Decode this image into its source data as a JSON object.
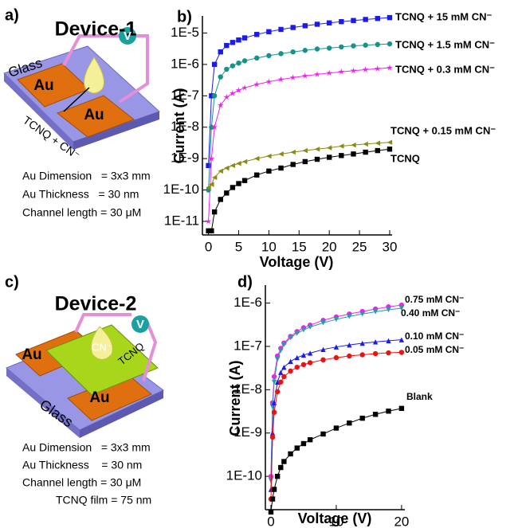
{
  "diagrams": [
    {
      "label": "a)",
      "title": "Device-1",
      "glass": "Glass",
      "pads": [
        "Au",
        "Au"
      ],
      "meter": "V",
      "drop": "TCNQ + CN⁻",
      "specs": [
        "Au Dimension   = 3x3 mm",
        "Au Thickness   = 30 nm",
        "Channel length = 30 μM"
      ]
    },
    {
      "label": "c)",
      "title": "Device-2",
      "glass": "Glass",
      "pads": [
        "Au",
        "Au"
      ],
      "meter": "V",
      "drop": "CN⁻",
      "film": "TCNQ",
      "specs": [
        "Au Dimension   = 3x3 mm",
        "Au Thickness    = 30 nm",
        "Channel length = 30 μM",
        "TCNQ film = 75 nm"
      ]
    }
  ],
  "chart_data": [
    {
      "type": "line",
      "label": "b)",
      "log_y": true,
      "xlabel": "Voltage (V)",
      "ylabel": "Current (A)",
      "x": [
        0,
        0.5,
        1,
        2,
        3,
        4,
        5,
        6,
        8,
        10,
        12,
        14,
        16,
        18,
        20,
        22,
        24,
        26,
        28,
        30
      ],
      "xlim": [
        -1,
        30.4
      ],
      "xticks": [
        0,
        5,
        10,
        15,
        20,
        25,
        30
      ],
      "ylim": [
        3.7e-12,
        3.5e-05
      ],
      "yticks": [
        {
          "value": 1e-11,
          "label": "1E-11"
        },
        {
          "value": 1e-10,
          "label": "1E-10"
        },
        {
          "value": 1e-09,
          "label": "1E-9"
        },
        {
          "value": 1e-08,
          "label": "1E-8"
        },
        {
          "value": 1e-07,
          "label": "1E-7"
        },
        {
          "value": 1e-06,
          "label": "1E-6"
        },
        {
          "value": 1e-05,
          "label": "1E-5"
        }
      ],
      "series": [
        {
          "name": "TCNQ + 15 mM CN⁻",
          "color": "#1a1aee",
          "marker": "square",
          "values": [
            6e-10,
            1e-07,
            1e-06,
            2.5e-06,
            4e-06,
            5e-06,
            6e-06,
            7e-06,
            9e-06,
            1.1e-05,
            1.3e-05,
            1.5e-05,
            1.7e-05,
            1.9e-05,
            2.1e-05,
            2.3e-05,
            2.5e-05,
            2.7e-05,
            2.9e-05,
            3.1e-05
          ]
        },
        {
          "name": "TCNQ + 1.5 mM CN⁻",
          "color": "#17928a",
          "marker": "circle",
          "values": [
            1e-10,
            1e-08,
            1e-07,
            4e-07,
            7e-07,
            9e-07,
            1.1e-06,
            1.3e-06,
            1.6e-06,
            1.9e-06,
            2.2e-06,
            2.5e-06,
            2.8e-06,
            3.1e-06,
            3.3e-06,
            3.6e-06,
            3.9e-06,
            4.1e-06,
            4.3e-06,
            4.5e-06
          ]
        },
        {
          "name": "TCNQ + 0.3 mM CN⁻",
          "color": "#ee22ee",
          "marker": "star",
          "values": [
            1e-11,
            1e-09,
            1e-08,
            5e-08,
            9e-08,
            1.2e-07,
            1.5e-07,
            1.8e-07,
            2.3e-07,
            2.8e-07,
            3.3e-07,
            3.8e-07,
            4.3e-07,
            4.8e-07,
            5.3e-07,
            5.8e-07,
            6.3e-07,
            6.8e-07,
            7.3e-07,
            7.8e-07
          ]
        },
        {
          "name": "TCNQ + 0.15 mM CN⁻",
          "color": "#8a8a12",
          "marker": "tri-left",
          "values": [
            1.2e-10,
            1.5e-10,
            2.5e-10,
            4e-10,
            5e-10,
            6e-10,
            7e-10,
            8e-10,
            1e-09,
            1.2e-09,
            1.4e-09,
            1.6e-09,
            1.8e-09,
            2e-09,
            2.2e-09,
            2.5e-09,
            2.7e-09,
            2.9e-09,
            3.1e-09,
            3.3e-09
          ]
        },
        {
          "name": "TCNQ",
          "color": "#000000",
          "marker": "square",
          "values": [
            5e-12,
            5e-12,
            2e-11,
            5e-11,
            8e-11,
            1.2e-10,
            1.6e-10,
            2e-10,
            3e-10,
            4e-10,
            5e-10,
            6.5e-10,
            8e-10,
            9.5e-10,
            1.1e-09,
            1.25e-09,
            1.4e-09,
            1.6e-09,
            1.8e-09,
            2e-09
          ]
        }
      ]
    },
    {
      "type": "line",
      "label": "d)",
      "log_y": true,
      "xlabel": "Voltage (V)",
      "ylabel": "Current (A)",
      "x": [
        0,
        0.25,
        0.5,
        1,
        1.5,
        2,
        3,
        4,
        5,
        6,
        8,
        10,
        12,
        14,
        16,
        18,
        20
      ],
      "xlim": [
        -0.85,
        20.5
      ],
      "xticks": [
        0,
        10,
        20
      ],
      "ylim": [
        1.7e-11,
        2.6e-06
      ],
      "yticks": [
        {
          "value": 1e-10,
          "label": "1E-10"
        },
        {
          "value": 1e-09,
          "label": "1E-9"
        },
        {
          "value": 1e-08,
          "label": "1E-8"
        },
        {
          "value": 1e-07,
          "label": "1E-7"
        },
        {
          "value": 1e-06,
          "label": "1E-6"
        }
      ],
      "series": [
        {
          "name": "0.75 mM CN⁻",
          "color": "#ee22ee",
          "marker": "circle",
          "values": [
            1e-10,
            5e-09,
            2e-08,
            6e-08,
            9e-08,
            1.2e-07,
            1.7e-07,
            2.2e-07,
            2.7e-07,
            3.1e-07,
            4e-07,
            4.8e-07,
            5.6e-07,
            6.4e-07,
            7.3e-07,
            8.2e-07,
            9e-07
          ]
        },
        {
          "name": "0.40 mM CN⁻",
          "color": "#2a9aa8",
          "marker": "tri-down",
          "values": [
            8e-11,
            4e-09,
            1.5e-08,
            5e-08,
            8e-08,
            1.1e-07,
            1.6e-07,
            2e-07,
            2.4e-07,
            2.8e-07,
            3.5e-07,
            4.2e-07,
            4.9e-07,
            5.6e-07,
            6.3e-07,
            7e-07,
            7.6e-07
          ]
        },
        {
          "name": "0.10 mM CN⁻",
          "color": "#1a1aee",
          "marker": "tri-up",
          "values": [
            5e-11,
            1e-09,
            5e-09,
            1.5e-08,
            2.5e-08,
            3.3e-08,
            4.5e-08,
            5.5e-08,
            6.3e-08,
            7e-08,
            8.5e-08,
            9.7e-08,
            1.08e-07,
            1.18e-07,
            1.27e-07,
            1.35e-07,
            1.42e-07
          ]
        },
        {
          "name": "0.05 mM CN⁻",
          "color": "#ee1111",
          "marker": "circle",
          "values": [
            3e-11,
            8e-10,
            3e-09,
            9e-09,
            1.5e-08,
            2e-08,
            2.7e-08,
            3.3e-08,
            3.8e-08,
            4.2e-08,
            4.9e-08,
            5.5e-08,
            6e-08,
            6.4e-08,
            6.8e-08,
            7.1e-08,
            7.3e-08
          ]
        },
        {
          "name": "Blank",
          "color": "#000000",
          "marker": "square",
          "values": [
            1.5e-11,
            3e-11,
            5e-11,
            1e-10,
            1.6e-10,
            2.2e-10,
            3.3e-10,
            4.5e-10,
            5.7e-10,
            7e-10,
            9.5e-10,
            1.3e-09,
            1.7e-09,
            2.2e-09,
            2.7e-09,
            3.2e-09,
            3.7e-09
          ]
        }
      ]
    }
  ]
}
